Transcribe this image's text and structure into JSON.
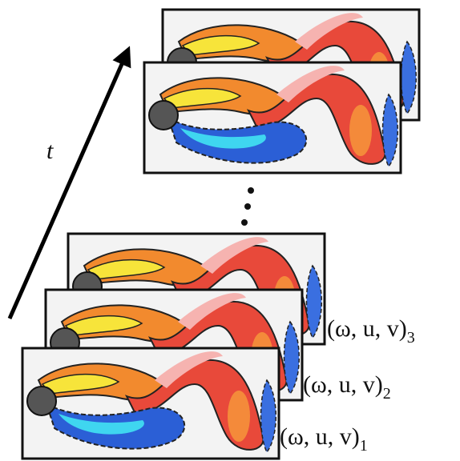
{
  "time_label": "t",
  "snapshots": [
    {
      "label": "(ω, u, v)",
      "subscript": "3"
    },
    {
      "label": "(ω, u, v)",
      "subscript": "2"
    },
    {
      "label": "(ω, u, v)",
      "subscript": "1"
    }
  ]
}
